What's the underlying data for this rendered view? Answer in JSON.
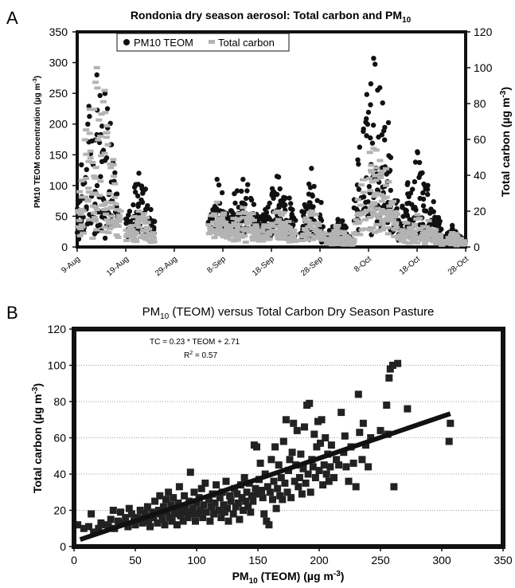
{
  "chart_data": [
    {
      "type": "scatter",
      "panel_label": "A",
      "title": "Rondonia dry season aerosol: Total carbon and PM",
      "title_subscript": "10",
      "ylabel_left": "PM10 TEOM concentration (µg m",
      "ylabel_left_sup": "-3",
      "ylabel_left_end": ")",
      "ylabel_right": "Total carbon (µg m",
      "ylabel_right_sup": "-3",
      "ylabel_right_end": ")",
      "ylim_left": [
        0,
        350
      ],
      "ylim_right": [
        0,
        120
      ],
      "yticks_left": [
        "0",
        "50",
        "100",
        "150",
        "200",
        "250",
        "300",
        "350"
      ],
      "yticks_right": [
        "0",
        "20",
        "40",
        "60",
        "80",
        "100",
        "120"
      ],
      "xlim_days": [
        0,
        80
      ],
      "xticks": [
        "9-Aug",
        "19-Aug",
        "29-Aug",
        "8-Sep",
        "18-Sep",
        "28-Sep",
        "8-Oct",
        "18-Oct",
        "28-Oct"
      ],
      "grid": false,
      "legend_position": "top-left",
      "series": [
        {
          "name": "PM10 TEOM",
          "axis": "left",
          "color": "#111111",
          "marker": "circle",
          "segments": [
            {
              "start": "9-Aug",
              "end": "18-Aug",
              "peak": 280,
              "base": 40
            },
            {
              "start": "19-Aug",
              "end": "25-Aug",
              "peak": 120,
              "base": 35
            },
            {
              "start": "5-Sep",
              "end": "9-Sep",
              "peak": 110,
              "base": 40
            },
            {
              "start": "9-Sep",
              "end": "16-Sep",
              "peak": 110,
              "base": 40
            },
            {
              "start": "16-Sep",
              "end": "23-Sep",
              "peak": 115,
              "base": 35
            },
            {
              "start": "24-Sep",
              "end": "29-Sep",
              "peak": 128,
              "base": 25
            },
            {
              "start": "29-Sep",
              "end": "5-Oct",
              "peak": 45,
              "base": 10
            },
            {
              "start": "5-Oct",
              "end": "14-Oct",
              "peak": 307,
              "base": 50
            },
            {
              "start": "14-Oct",
              "end": "23-Oct",
              "peak": 155,
              "base": 25
            },
            {
              "start": "23-Oct",
              "end": "28-Oct",
              "peak": 35,
              "base": 10
            }
          ]
        },
        {
          "name": "Total carbon",
          "axis": "right",
          "color": "#b3b3b3",
          "marker": "square",
          "segments": [
            {
              "start": "9-Aug",
              "end": "18-Aug",
              "peak": 100,
              "base": 12
            },
            {
              "start": "19-Aug",
              "end": "25-Aug",
              "peak": 20,
              "base": 6
            },
            {
              "start": "5-Sep",
              "end": "9-Sep",
              "peak": 25,
              "base": 10
            },
            {
              "start": "9-Sep",
              "end": "16-Sep",
              "peak": 22,
              "base": 8
            },
            {
              "start": "16-Sep",
              "end": "23-Sep",
              "peak": 20,
              "base": 8
            },
            {
              "start": "24-Sep",
              "end": "29-Sep",
              "peak": 20,
              "base": 5
            },
            {
              "start": "29-Sep",
              "end": "5-Oct",
              "peak": 12,
              "base": 3
            },
            {
              "start": "5-Oct",
              "end": "14-Oct",
              "peak": 55,
              "base": 15
            },
            {
              "start": "14-Oct",
              "end": "23-Oct",
              "peak": 18,
              "base": 5
            },
            {
              "start": "23-Oct",
              "end": "28-Oct",
              "peak": 8,
              "base": 2
            }
          ]
        }
      ]
    },
    {
      "type": "scatter",
      "panel_label": "B",
      "title_prefix": "PM",
      "title_subscript": "10",
      "title_suffix": " (TEOM) versus Total Carbon Dry Season Pasture",
      "xlabel_prefix": "PM",
      "xlabel_subscript": "10",
      "xlabel_suffix": " (TEOM) (µg m",
      "xlabel_sup": "-3",
      "xlabel_end": ")",
      "ylabel": "Total carbon (µg m",
      "ylabel_sup": "-3",
      "ylabel_end": ")",
      "xlim": [
        0,
        350
      ],
      "ylim": [
        0,
        120
      ],
      "xticks": [
        "0",
        "50",
        "100",
        "150",
        "200",
        "250",
        "300",
        "350"
      ],
      "yticks": [
        "0",
        "20",
        "40",
        "60",
        "80",
        "100",
        "120"
      ],
      "grid": "horizontal dotted",
      "equation": "TC = 0.23 * TEOM + 2.71",
      "r2_label": "R",
      "r2_sup": "2",
      "r2_value": " = 0.57",
      "fit": {
        "slope": 0.23,
        "intercept": 2.71,
        "x_range": [
          5,
          307
        ]
      },
      "marker": "square",
      "color": "#222222",
      "points": [
        [
          3,
          12
        ],
        [
          8,
          10
        ],
        [
          12,
          11
        ],
        [
          14,
          18
        ],
        [
          16,
          8
        ],
        [
          20,
          10
        ],
        [
          22,
          13
        ],
        [
          25,
          12
        ],
        [
          28,
          11
        ],
        [
          30,
          15
        ],
        [
          32,
          20
        ],
        [
          33,
          10
        ],
        [
          36,
          14
        ],
        [
          38,
          19
        ],
        [
          40,
          13
        ],
        [
          42,
          16
        ],
        [
          44,
          11
        ],
        [
          45,
          21
        ],
        [
          47,
          18
        ],
        [
          49,
          14
        ],
        [
          50,
          12
        ],
        [
          52,
          16
        ],
        [
          54,
          20
        ],
        [
          55,
          15
        ],
        [
          56,
          13
        ],
        [
          58,
          18
        ],
        [
          60,
          22
        ],
        [
          61,
          14
        ],
        [
          62,
          11
        ],
        [
          64,
          19
        ],
        [
          65,
          16
        ],
        [
          66,
          25
        ],
        [
          68,
          13
        ],
        [
          69,
          20
        ],
        [
          70,
          28
        ],
        [
          71,
          18
        ],
        [
          72,
          15
        ],
        [
          73,
          22
        ],
        [
          74,
          12
        ],
        [
          75,
          26
        ],
        [
          76,
          19
        ],
        [
          77,
          30
        ],
        [
          78,
          16
        ],
        [
          79,
          23
        ],
        [
          80,
          14
        ],
        [
          81,
          27
        ],
        [
          82,
          18
        ],
        [
          83,
          21
        ],
        [
          84,
          12
        ],
        [
          85,
          24
        ],
        [
          86,
          33
        ],
        [
          87,
          17
        ],
        [
          88,
          20
        ],
        [
          89,
          14
        ],
        [
          90,
          28
        ],
        [
          91,
          22
        ],
        [
          92,
          19
        ],
        [
          93,
          16
        ],
        [
          94,
          25
        ],
        [
          95,
          41
        ],
        [
          96,
          18
        ],
        [
          97,
          21
        ],
        [
          98,
          30
        ],
        [
          99,
          14
        ],
        [
          100,
          24
        ],
        [
          101,
          18
        ],
        [
          102,
          27
        ],
        [
          103,
          20
        ],
        [
          104,
          32
        ],
        [
          105,
          16
        ],
        [
          106,
          23
        ],
        [
          107,
          35
        ],
        [
          108,
          19
        ],
        [
          110,
          26
        ],
        [
          111,
          14
        ],
        [
          112,
          22
        ],
        [
          113,
          29
        ],
        [
          114,
          18
        ],
        [
          115,
          24
        ],
        [
          116,
          34
        ],
        [
          118,
          20
        ],
        [
          119,
          27
        ],
        [
          120,
          16
        ],
        [
          121,
          30
        ],
        [
          122,
          23
        ],
        [
          123,
          19
        ],
        [
          124,
          36
        ],
        [
          125,
          21
        ],
        [
          126,
          14
        ],
        [
          127,
          28
        ],
        [
          128,
          25
        ],
        [
          130,
          18
        ],
        [
          131,
          32
        ],
        [
          132,
          22
        ],
        [
          133,
          29
        ],
        [
          134,
          24
        ],
        [
          135,
          15
        ],
        [
          136,
          34
        ],
        [
          137,
          27
        ],
        [
          138,
          20
        ],
        [
          139,
          38
        ],
        [
          140,
          25
        ],
        [
          141,
          30
        ],
        [
          142,
          22
        ],
        [
          143,
          35
        ],
        [
          144,
          19
        ],
        [
          145,
          28
        ],
        [
          146,
          25
        ],
        [
          147,
          56
        ],
        [
          148,
          32
        ],
        [
          149,
          55
        ],
        [
          150,
          29
        ],
        [
          151,
          37
        ],
        [
          152,
          46
        ],
        [
          153,
          31
        ],
        [
          154,
          27
        ],
        [
          155,
          18
        ],
        [
          156,
          40
        ],
        [
          157,
          14
        ],
        [
          158,
          33
        ],
        [
          159,
          12
        ],
        [
          160,
          30
        ],
        [
          161,
          48
        ],
        [
          162,
          26
        ],
        [
          163,
          36
        ],
        [
          164,
          55
        ],
        [
          165,
          21
        ],
        [
          166,
          32
        ],
        [
          167,
          45
        ],
        [
          168,
          28
        ],
        [
          169,
          38
        ],
        [
          170,
          26
        ],
        [
          171,
          58
        ],
        [
          172,
          35
        ],
        [
          173,
          70
        ],
        [
          174,
          30
        ],
        [
          175,
          42
        ],
        [
          176,
          48
        ],
        [
          177,
          27
        ],
        [
          178,
          52
        ],
        [
          179,
          68
        ],
        [
          180,
          36
        ],
        [
          181,
          45
        ],
        [
          182,
          64
        ],
        [
          183,
          33
        ],
        [
          184,
          38
        ],
        [
          185,
          51
        ],
        [
          186,
          29
        ],
        [
          187,
          43
        ],
        [
          188,
          66
        ],
        [
          189,
          35
        ],
        [
          190,
          78
        ],
        [
          191,
          40
        ],
        [
          192,
          79
        ],
        [
          193,
          30
        ],
        [
          194,
          48
        ],
        [
          195,
          44
        ],
        [
          196,
          62
        ],
        [
          197,
          38
        ],
        [
          198,
          55
        ],
        [
          199,
          69
        ],
        [
          200,
          42
        ],
        [
          201,
          57
        ],
        [
          202,
          70
        ],
        [
          203,
          34
        ],
        [
          204,
          45
        ],
        [
          205,
          60
        ],
        [
          206,
          40
        ],
        [
          207,
          51
        ],
        [
          208,
          36
        ],
        [
          209,
          44
        ],
        [
          210,
          56
        ],
        [
          212,
          38
        ],
        [
          214,
          48
        ],
        [
          216,
          45
        ],
        [
          218,
          74
        ],
        [
          220,
          52
        ],
        [
          221,
          61
        ],
        [
          222,
          44
        ],
        [
          224,
          36
        ],
        [
          226,
          55
        ],
        [
          228,
          46
        ],
        [
          230,
          33
        ],
        [
          232,
          84
        ],
        [
          233,
          63
        ],
        [
          235,
          48
        ],
        [
          236,
          68
        ],
        [
          238,
          56
        ],
        [
          240,
          44
        ],
        [
          242,
          60
        ],
        [
          250,
          64
        ],
        [
          255,
          78
        ],
        [
          256,
          62
        ],
        [
          257,
          93
        ],
        [
          258,
          98
        ],
        [
          260,
          100
        ],
        [
          261,
          33
        ],
        [
          264,
          101
        ],
        [
          272,
          76
        ],
        [
          306,
          58
        ],
        [
          307,
          68
        ]
      ]
    }
  ]
}
